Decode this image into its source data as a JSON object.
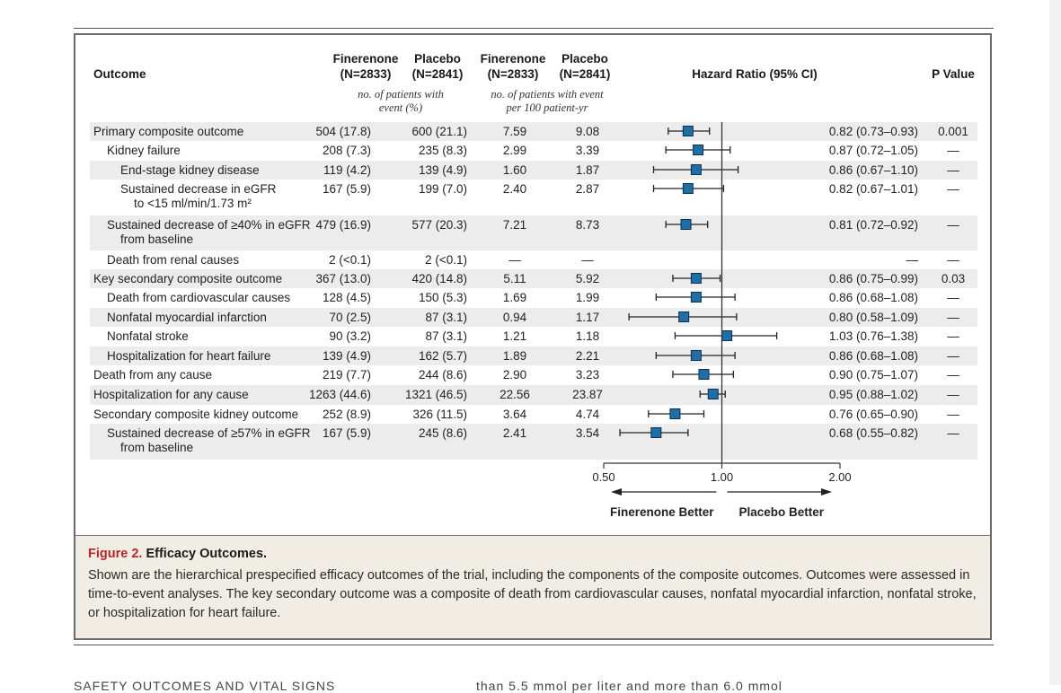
{
  "header": {
    "outcome": "Outcome",
    "fin_n1": "Finerenone",
    "fin_n2": "(N=2833)",
    "pla_n1": "Placebo",
    "pla_n2": "(N=2841)",
    "fin_r1": "Finerenone",
    "fin_r2": "(N=2833)",
    "pla_r1": "Placebo",
    "pla_r2": "(N=2841)",
    "n_sub1": "no. of patients with",
    "n_sub2": "event (%)",
    "r_sub1": "no. of patients with event",
    "r_sub2": "per 100 patient-yr",
    "hr": "Hazard Ratio (95% CI)",
    "p": "P Value"
  },
  "caption": {
    "label": "Figure 2.",
    "title": "Efficacy Outcomes.",
    "text": "Shown are the hierarchical prespecified efficacy outcomes of the trial, including the components of the composite outcomes. Outcomes were assessed in time-to-event analyses. The key secondary outcome was a composite of death from cardiovascular causes, nonfatal myocardial infarction, nonfatal stroke, or hospitalization for heart failure."
  },
  "cut_text_left": "SAFETY OUTCOMES AND VITAL SIGNS",
  "cut_text_right": "than 5.5 mmol per liter and more than 6.0 mmol",
  "chart_data": {
    "type": "forest",
    "x_axis": {
      "scale": "log",
      "range": [
        0.5,
        2.0
      ],
      "ticks": [
        0.5,
        1.0,
        2.0
      ],
      "tick_labels": [
        "0.50",
        "1.00",
        "2.00"
      ],
      "reference": 1.0,
      "left_label": "Finerenone Better",
      "right_label": "Placebo Better"
    },
    "rows": [
      {
        "label": [
          "Primary composite outcome"
        ],
        "indent": 0,
        "fin_n": "504 (17.8)",
        "pla_n": "600 (21.1)",
        "fin_rate": "7.59",
        "pla_rate": "9.08",
        "hr": 0.82,
        "lo": 0.73,
        "hi": 0.93,
        "hr_text": "0.82 (0.73–0.93)",
        "p": "0.001"
      },
      {
        "label": [
          "Kidney failure"
        ],
        "indent": 1,
        "fin_n": "208 (7.3)",
        "pla_n": "235 (8.3)",
        "fin_rate": "2.99",
        "pla_rate": "3.39",
        "hr": 0.87,
        "lo": 0.72,
        "hi": 1.05,
        "hr_text": "0.87 (0.72–1.05)",
        "p": "—"
      },
      {
        "label": [
          "End-stage kidney disease"
        ],
        "indent": 2,
        "fin_n": "119 (4.2)",
        "pla_n": "139 (4.9)",
        "fin_rate": "1.60",
        "pla_rate": "1.87",
        "hr": 0.86,
        "lo": 0.67,
        "hi": 1.1,
        "hr_text": "0.86 (0.67–1.10)",
        "p": "—"
      },
      {
        "label": [
          "Sustained decrease in eGFR",
          "to <15 ml/min/1.73 m²"
        ],
        "indent": 2,
        "fin_n": "167 (5.9)",
        "pla_n": "199 (7.0)",
        "fin_rate": "2.40",
        "pla_rate": "2.87",
        "hr": 0.82,
        "lo": 0.67,
        "hi": 1.01,
        "hr_text": "0.82 (0.67–1.01)",
        "p": "—"
      },
      {
        "label": [
          "Sustained decrease of ≥40% in eGFR",
          "from baseline"
        ],
        "indent": 1,
        "fin_n": "479 (16.9)",
        "pla_n": "577 (20.3)",
        "fin_rate": "7.21",
        "pla_rate": "8.73",
        "hr": 0.81,
        "lo": 0.72,
        "hi": 0.92,
        "hr_text": "0.81 (0.72–0.92)",
        "p": "—"
      },
      {
        "label": [
          "Death from renal causes"
        ],
        "indent": 1,
        "fin_n": "2 (<0.1)",
        "pla_n": "2 (<0.1)",
        "fin_rate": "—",
        "pla_rate": "—",
        "hr": null,
        "lo": null,
        "hi": null,
        "hr_text": "—",
        "p": "—"
      },
      {
        "label": [
          "Key secondary composite outcome"
        ],
        "indent": 0,
        "fin_n": "367 (13.0)",
        "pla_n": "420 (14.8)",
        "fin_rate": "5.11",
        "pla_rate": "5.92",
        "hr": 0.86,
        "lo": 0.75,
        "hi": 0.99,
        "hr_text": "0.86 (0.75–0.99)",
        "p": "0.03"
      },
      {
        "label": [
          "Death from cardiovascular causes"
        ],
        "indent": 1,
        "fin_n": "128 (4.5)",
        "pla_n": "150 (5.3)",
        "fin_rate": "1.69",
        "pla_rate": "1.99",
        "hr": 0.86,
        "lo": 0.68,
        "hi": 1.08,
        "hr_text": "0.86 (0.68–1.08)",
        "p": "—"
      },
      {
        "label": [
          "Nonfatal myocardial infarction"
        ],
        "indent": 1,
        "fin_n": "70 (2.5)",
        "pla_n": "87 (3.1)",
        "fin_rate": "0.94",
        "pla_rate": "1.17",
        "hr": 0.8,
        "lo": 0.58,
        "hi": 1.09,
        "hr_text": "0.80 (0.58–1.09)",
        "p": "—"
      },
      {
        "label": [
          "Nonfatal stroke"
        ],
        "indent": 1,
        "fin_n": "90 (3.2)",
        "pla_n": "87 (3.1)",
        "fin_rate": "1.21",
        "pla_rate": "1.18",
        "hr": 1.03,
        "lo": 0.76,
        "hi": 1.38,
        "hr_text": "1.03 (0.76–1.38)",
        "p": "—"
      },
      {
        "label": [
          "Hospitalization for heart failure"
        ],
        "indent": 1,
        "fin_n": "139 (4.9)",
        "pla_n": "162 (5.7)",
        "fin_rate": "1.89",
        "pla_rate": "2.21",
        "hr": 0.86,
        "lo": 0.68,
        "hi": 1.08,
        "hr_text": "0.86 (0.68–1.08)",
        "p": "—"
      },
      {
        "label": [
          "Death from any cause"
        ],
        "indent": 0,
        "fin_n": "219 (7.7)",
        "pla_n": "244 (8.6)",
        "fin_rate": "2.90",
        "pla_rate": "3.23",
        "hr": 0.9,
        "lo": 0.75,
        "hi": 1.07,
        "hr_text": "0.90 (0.75–1.07)",
        "p": "—"
      },
      {
        "label": [
          "Hospitalization for any cause"
        ],
        "indent": 0,
        "fin_n": "1263 (44.6)",
        "pla_n": "1321 (46.5)",
        "fin_rate": "22.56",
        "pla_rate": "23.87",
        "hr": 0.95,
        "lo": 0.88,
        "hi": 1.02,
        "hr_text": "0.95 (0.88–1.02)",
        "p": "—"
      },
      {
        "label": [
          "Secondary composite kidney outcome"
        ],
        "indent": 0,
        "fin_n": "252 (8.9)",
        "pla_n": "326 (11.5)",
        "fin_rate": "3.64",
        "pla_rate": "4.74",
        "hr": 0.76,
        "lo": 0.65,
        "hi": 0.9,
        "hr_text": "0.76 (0.65–0.90)",
        "p": "—"
      },
      {
        "label": [
          "Sustained decrease of ≥57% in eGFR",
          "from baseline"
        ],
        "indent": 1,
        "fin_n": "167 (5.9)",
        "pla_n": "245 (8.6)",
        "fin_rate": "2.41",
        "pla_rate": "3.54",
        "hr": 0.68,
        "lo": 0.55,
        "hi": 0.82,
        "hr_text": "0.68 (0.55–0.82)",
        "p": "—"
      }
    ],
    "colors": {
      "marker": "#1f6ea8",
      "stripe": "#ececec",
      "line": "#222222"
    }
  }
}
